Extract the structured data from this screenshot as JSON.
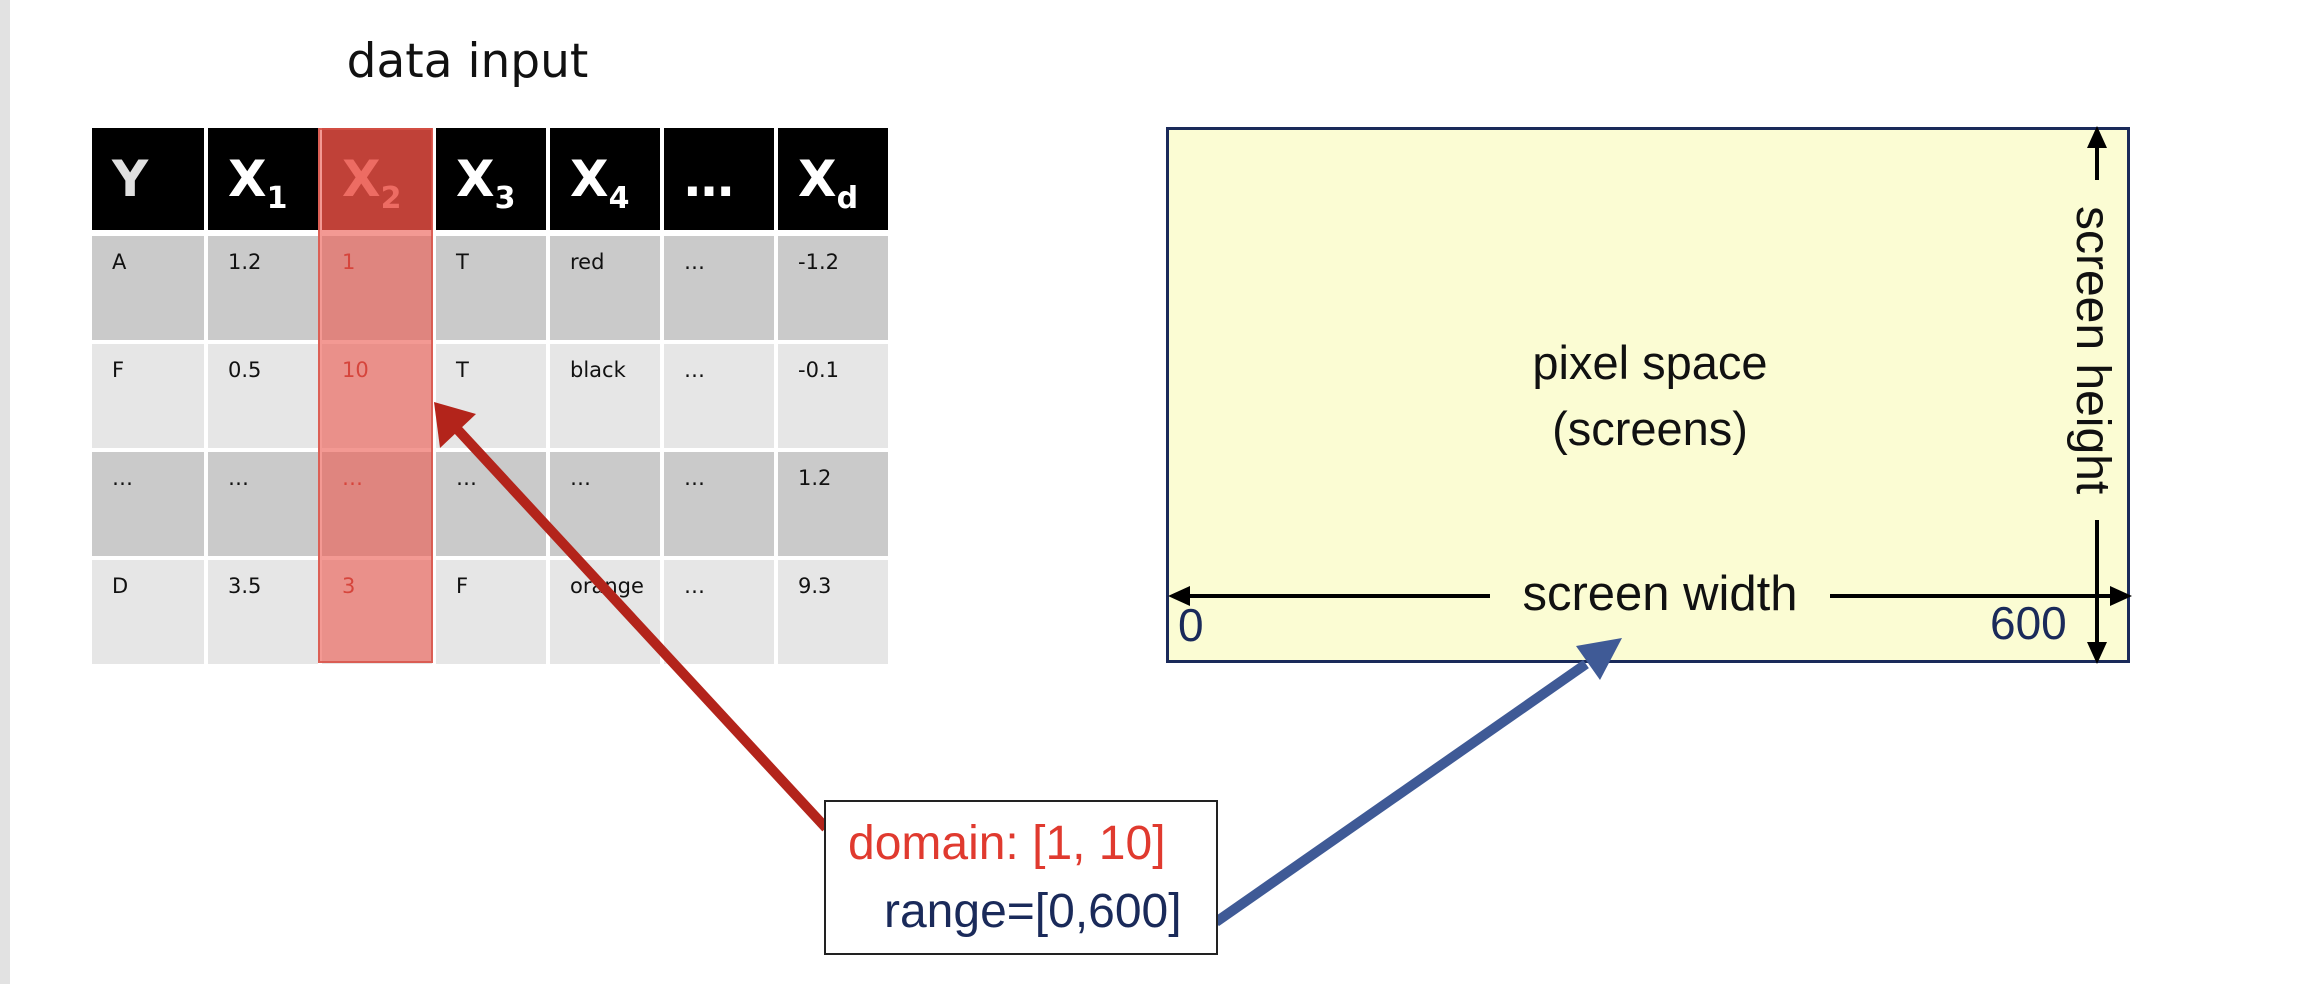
{
  "title": "data input",
  "table": {
    "headers": [
      {
        "main": "Y",
        "sub": ""
      },
      {
        "main": "X",
        "sub": "1"
      },
      {
        "main": "X",
        "sub": "2"
      },
      {
        "main": "X",
        "sub": "3"
      },
      {
        "main": "X",
        "sub": "4"
      },
      {
        "main": "…",
        "sub": ""
      },
      {
        "main": "X",
        "sub": "d"
      }
    ],
    "highlighted_column": 2,
    "rows": [
      [
        "A",
        "1.2",
        "1",
        "T",
        "red",
        "…",
        "-1.2"
      ],
      [
        "F",
        "0.5",
        "10",
        "T",
        "black",
        "…",
        "-0.1"
      ],
      [
        "…",
        "…",
        "…",
        "…",
        "…",
        "…",
        "1.2"
      ],
      [
        "D",
        "3.5",
        "3",
        "F",
        "orange",
        "…",
        "9.3"
      ]
    ]
  },
  "screen": {
    "label_line1": "pixel space",
    "label_line2": "(screens)",
    "width_label": "screen width",
    "height_label": "screen height",
    "min_label": "0",
    "max_label": "600"
  },
  "scale": {
    "domain_text": "domain: [1, 10]",
    "range_text": "range=[0,600]"
  },
  "colors": {
    "domain_arrow": "#b3241b",
    "range_arrow": "#3f5a96",
    "screen_fill": "#fbfcd3",
    "header_bg": "#000000",
    "highlight_header_bg": "#7a1812",
    "highlight_column": "#ec5a50"
  }
}
